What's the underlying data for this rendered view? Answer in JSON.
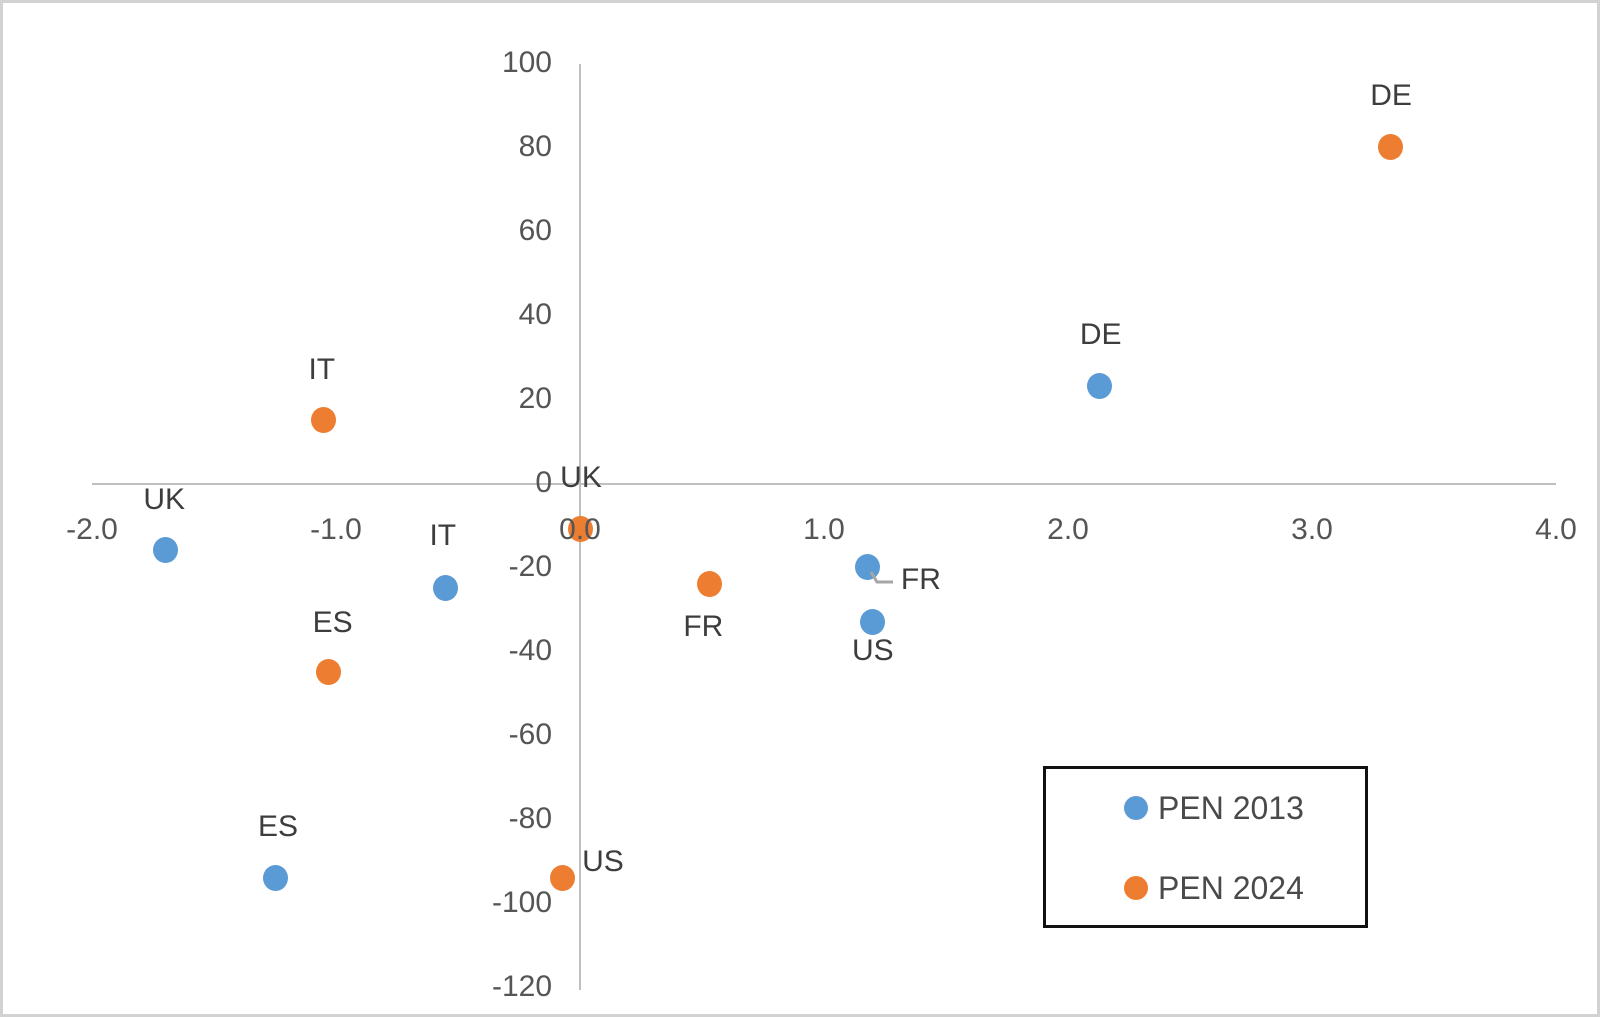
{
  "chart_data": {
    "type": "scatter",
    "title": "",
    "xlabel": "",
    "ylabel": "",
    "grid": false,
    "legend_position": "inside-bottom-right",
    "x_axis": {
      "range": [
        -2.0,
        4.0
      ],
      "tick_values": [
        -2.0,
        -1.0,
        0.0,
        1.0,
        2.0,
        3.0,
        4.0
      ],
      "tick_labels": [
        "-2.0",
        "-1.0",
        "0.0",
        "1.0",
        "2.0",
        "3.0",
        "4.0"
      ]
    },
    "y_axis": {
      "range": [
        -120,
        100
      ],
      "tick_values": [
        100,
        80,
        60,
        40,
        20,
        0,
        -20,
        -40,
        -60,
        -80,
        -100,
        -120
      ],
      "tick_labels": [
        "100",
        "80",
        "60",
        "40",
        "20",
        "0",
        "-20",
        "-40",
        "-60",
        "-80",
        "-100",
        "-120"
      ]
    },
    "series": [
      {
        "name": "PEN 2013",
        "color": "#5B9BD5",
        "points": [
          {
            "label": "UK",
            "x": -1.7,
            "y": -16,
            "label_dx": -1,
            "label_dy": -50
          },
          {
            "label": "IT",
            "x": -0.55,
            "y": -25,
            "label_dx": -3,
            "label_dy": -52
          },
          {
            "label": "ES",
            "x": -1.25,
            "y": -94,
            "label_dx": 3,
            "label_dy": -51
          },
          {
            "label": "FR",
            "x": 1.18,
            "y": -20,
            "label_dx": 53,
            "label_dy": 13,
            "leader_line": true
          },
          {
            "label": "US",
            "x": 1.2,
            "y": -33,
            "label_dx": 0,
            "label_dy": 29
          },
          {
            "label": "DE",
            "x": 2.13,
            "y": 23,
            "label_dx": 1,
            "label_dy": -51
          }
        ]
      },
      {
        "name": "PEN 2024",
        "color": "#ED7D31",
        "points": [
          {
            "label": "UK",
            "x": 0.0,
            "y": -11,
            "label_dx": 1,
            "label_dy": -51
          },
          {
            "label": "IT",
            "x": -1.05,
            "y": 15,
            "label_dx": -2,
            "label_dy": -50
          },
          {
            "label": "ES",
            "x": -1.03,
            "y": -45,
            "label_dx": 4,
            "label_dy": -49
          },
          {
            "label": "FR",
            "x": 0.53,
            "y": -24,
            "label_dx": -6,
            "label_dy": 43
          },
          {
            "label": "US",
            "x": -0.07,
            "y": -94,
            "label_dx": 40,
            "label_dy": -16
          },
          {
            "label": "DE",
            "x": 3.32,
            "y": 80,
            "label_dx": 1,
            "label_dy": -51
          }
        ]
      }
    ]
  },
  "legend": {
    "items": [
      {
        "label": "PEN 2013",
        "color": "#5B9BD5"
      },
      {
        "label": "PEN 2024",
        "color": "#ED7D31"
      }
    ]
  },
  "colors": {
    "series_2013": "#5B9BD5",
    "series_2024": "#ED7D31",
    "axis_line": "#bfbfbf",
    "tick_text": "#555555",
    "point_label_text": "#3d3d3d",
    "legend_border": "#111111",
    "outer_border": "#d2d2d2",
    "background": "#ffffff"
  }
}
